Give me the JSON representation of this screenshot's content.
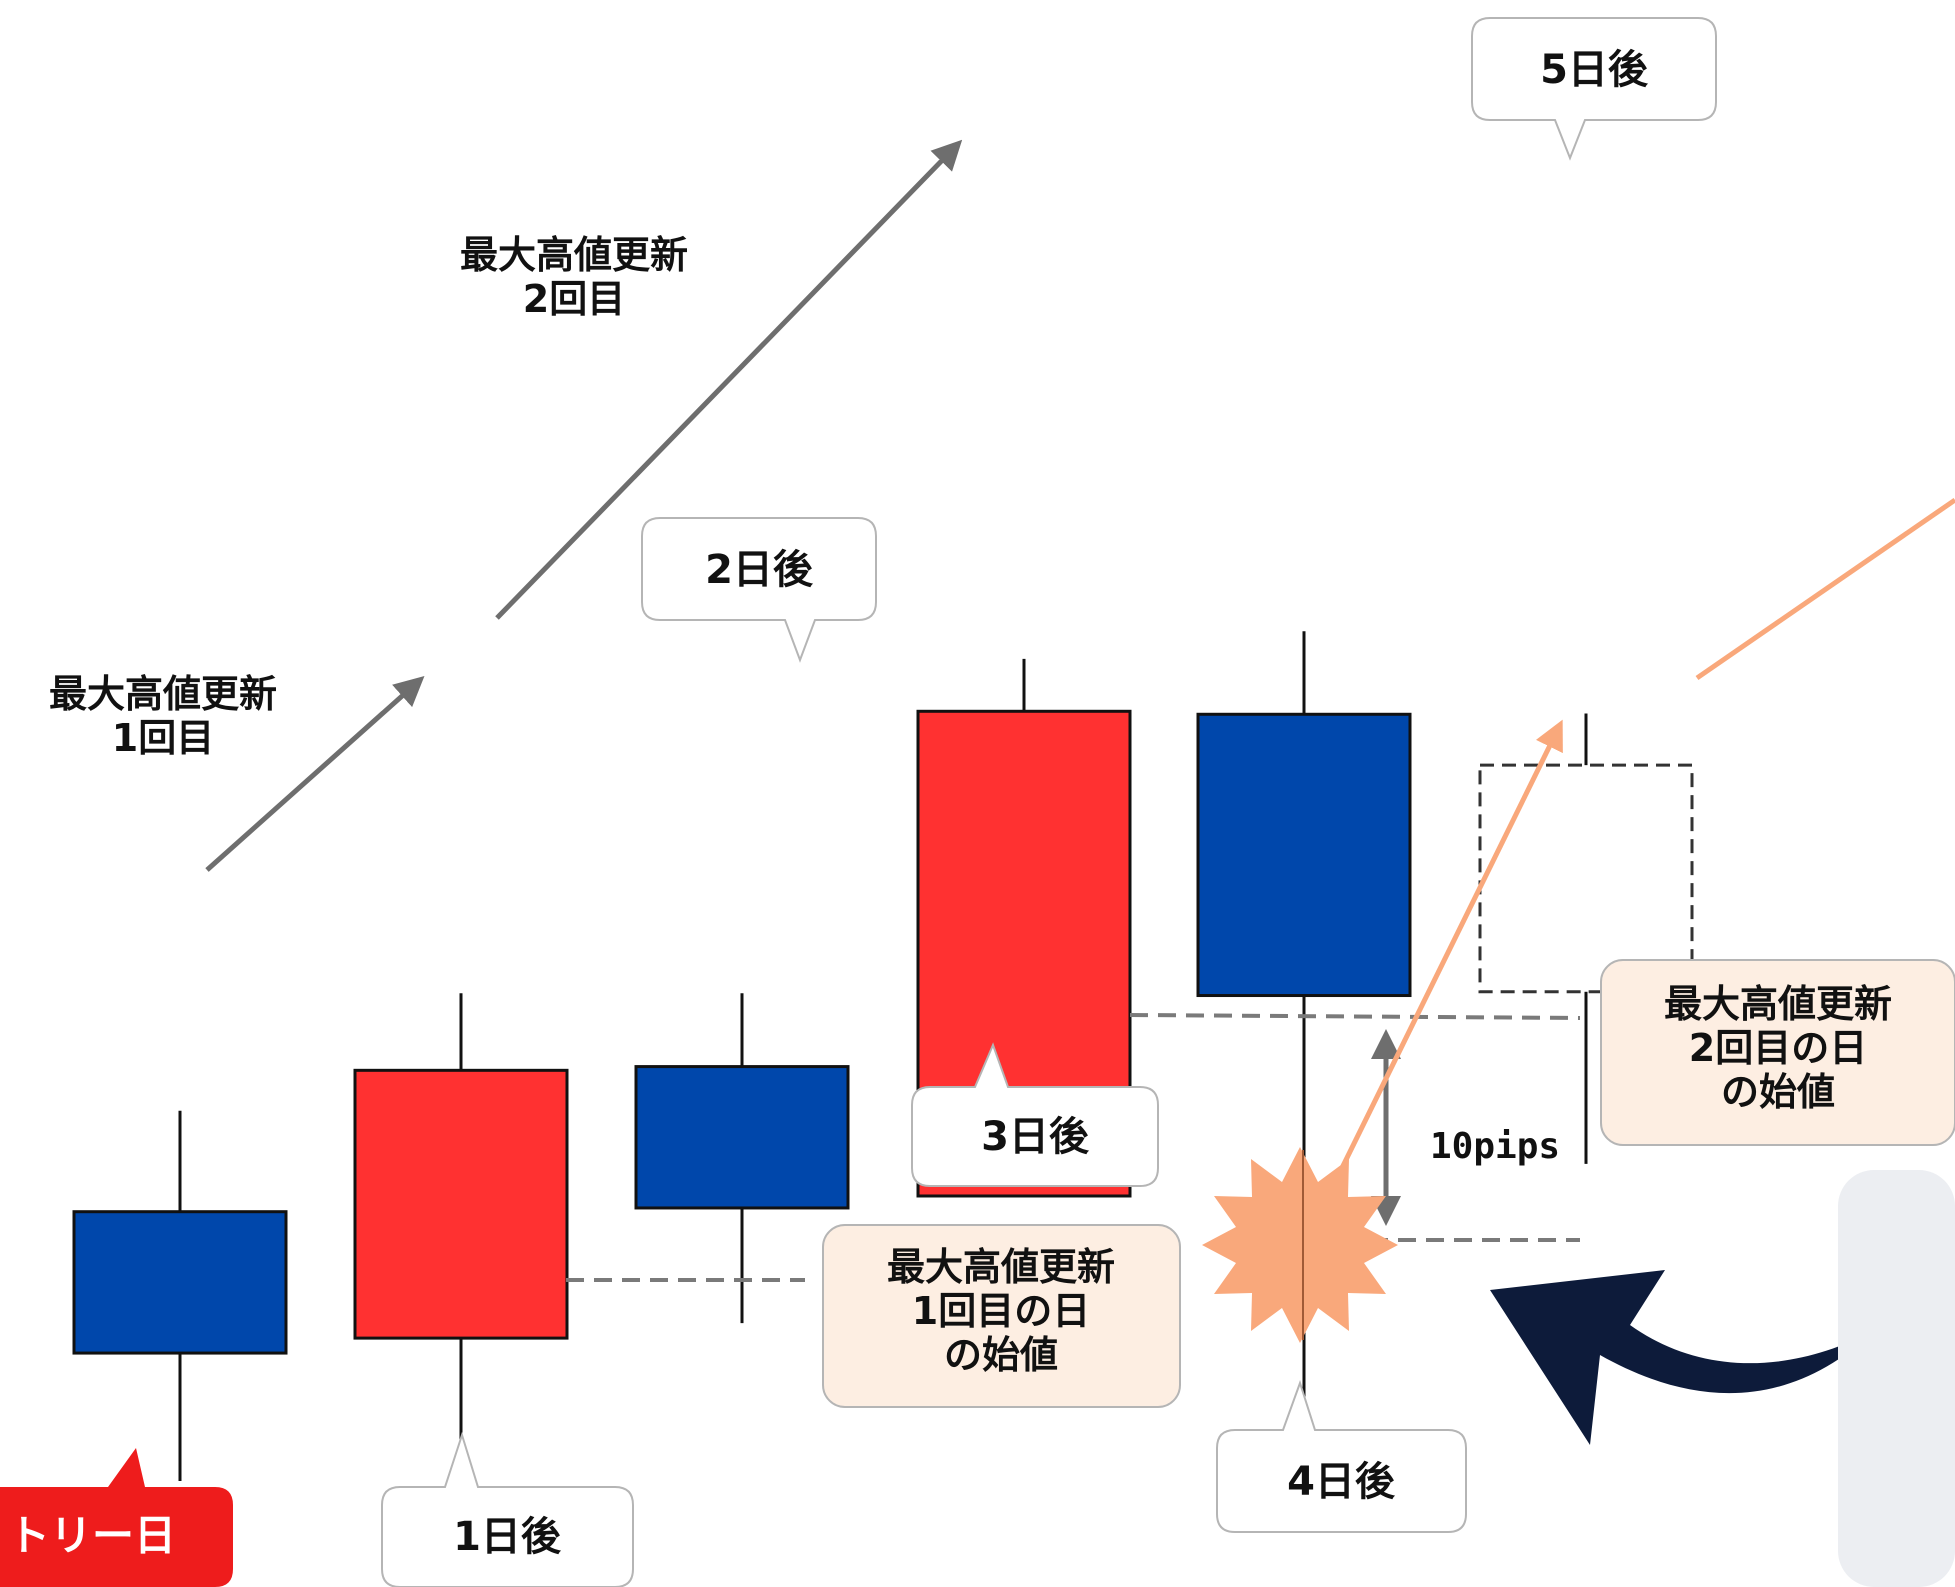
{
  "annotations": {
    "update1": [
      "最大高値更新",
      "1回目"
    ],
    "update2": [
      "最大高値更新",
      "2回目"
    ]
  },
  "day_labels": {
    "entry": "トリー日",
    "d1": "1日後",
    "d2": "2日後",
    "d3": "3日後",
    "d4": "4日後",
    "d5": "5日後"
  },
  "price_boxes": {
    "open1": [
      "最大高値更新",
      "1回目の日",
      "の始値"
    ],
    "open2": [
      "最大高値更新",
      "2回目の日",
      "の始値"
    ]
  },
  "pips_label": "10pips",
  "colors": {
    "bullish": "#ff3131",
    "bearish": "#0047ab",
    "orange": "#f9a87b",
    "peach_bg": "#fdeee2",
    "navy_arrow": "#0d1b3a",
    "entry_red": "#ee1c1c"
  },
  "chart_data": {
    "type": "candlestick",
    "candles": [
      {
        "day": "entry",
        "direction": "bearish",
        "open": 47.5,
        "close": 28.6,
        "high": 61.0,
        "low": 11.5
      },
      {
        "day": "1日後",
        "direction": "bullish",
        "open": 30.6,
        "close": 66.4,
        "high": 76.7,
        "low": 15.0
      },
      {
        "day": "2日後",
        "direction": "bearish",
        "open": 66.9,
        "close": 48.0,
        "high": 76.7,
        "low": 32.6
      },
      {
        "day": "3日後",
        "direction": "bullish",
        "open": 49.6,
        "close": 114.4,
        "high": 121.4,
        "low": 49.6
      },
      {
        "day": "4日後",
        "direction": "bearish",
        "open": 114.0,
        "close": 76.4,
        "high": 125.1,
        "low": 22.4
      },
      {
        "day": "5日後",
        "direction": "projected",
        "open": 76.9,
        "close": 107.2,
        "high": 114.1,
        "low": 53.9
      }
    ],
    "reference_lines": [
      {
        "label": "最大高値更新1回目の日の始値",
        "value": 30.6
      },
      {
        "label": "最大高値更新2回目の日の始値",
        "value": 49.6
      },
      {
        "label": "10pips",
        "value": 28.6
      }
    ]
  }
}
